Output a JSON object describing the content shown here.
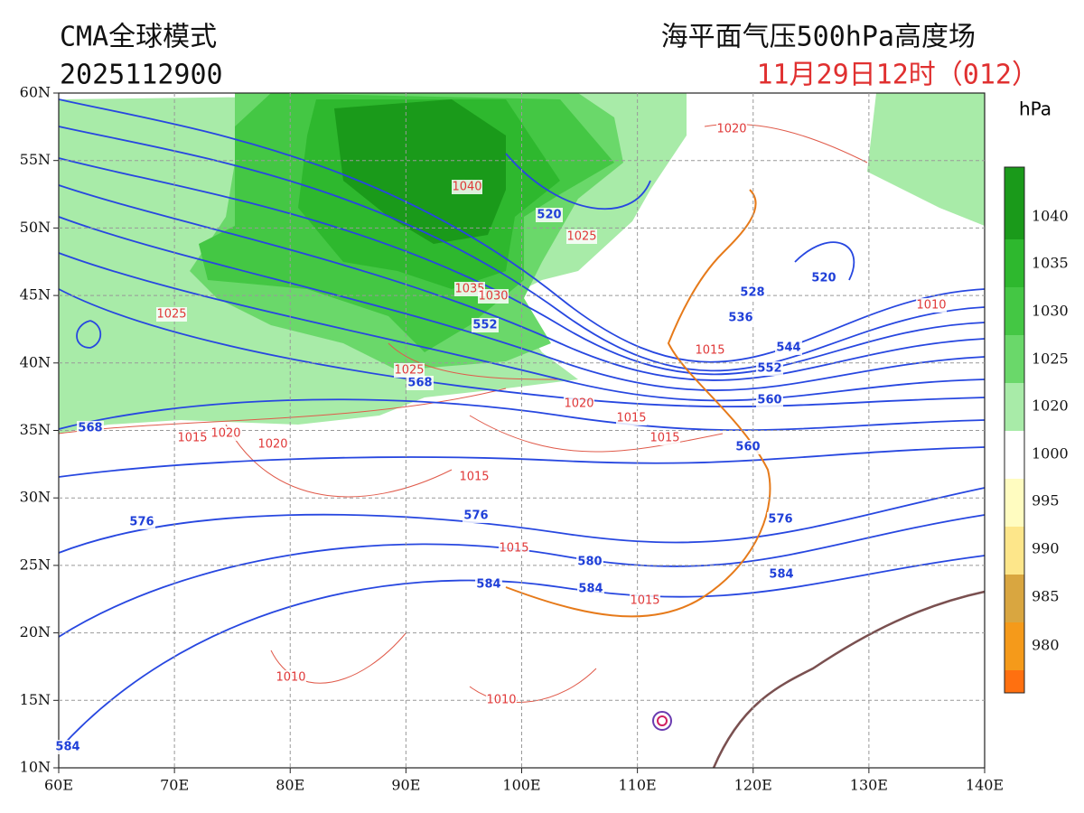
{
  "header": {
    "model": "CMA全球模式",
    "init_time": "2025112900",
    "product": "海平面气压500hPa高度场",
    "valid_time": "11月29日12时（012）"
  },
  "axes": {
    "lat_labels": [
      "60N",
      "55N",
      "50N",
      "45N",
      "40N",
      "35N",
      "30N",
      "25N",
      "20N",
      "15N",
      "10N"
    ],
    "lon_labels": [
      "60E",
      "70E",
      "80E",
      "90E",
      "100E",
      "110E",
      "120E",
      "130E",
      "140E"
    ]
  },
  "colorbar": {
    "unit": "hPa",
    "labels": [
      1040,
      1035,
      1030,
      1025,
      1020,
      1000,
      995,
      990,
      985,
      980
    ]
  },
  "contours": {
    "height_labels": [
      520,
      520,
      528,
      536,
      544,
      552,
      552,
      560,
      560,
      568,
      568,
      576,
      576,
      576,
      580,
      584,
      584,
      584,
      584
    ],
    "pressure_labels": [
      1020,
      1040,
      1025,
      1025,
      1035,
      1030,
      1010,
      1015,
      1025,
      1020,
      1015,
      1015,
      1015,
      1020,
      1020,
      1015,
      1015,
      1015,
      1010,
      1010
    ]
  }
}
